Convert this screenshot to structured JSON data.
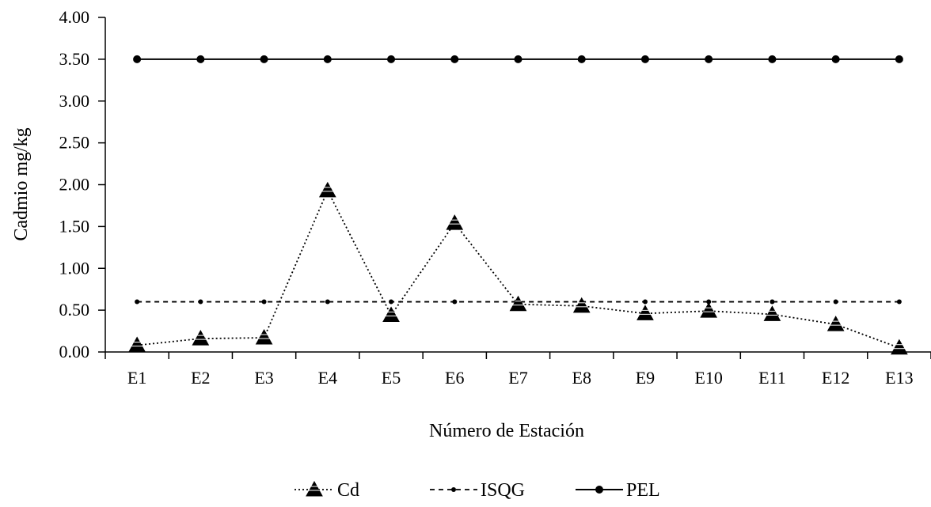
{
  "chart_data": {
    "type": "line",
    "title": "",
    "xlabel": "Número de Estación",
    "ylabel": "Cadmio mg/kg",
    "categories": [
      "E1",
      "E2",
      "E3",
      "E4",
      "E5",
      "E6",
      "E7",
      "E8",
      "E9",
      "E10",
      "E11",
      "E12",
      "E13"
    ],
    "ylim": [
      0,
      4
    ],
    "yticks": [
      "0.00",
      "0.50",
      "1.00",
      "1.50",
      "2.00",
      "2.50",
      "3.00",
      "3.50",
      "4.00"
    ],
    "grid": false,
    "legend_position": "bottom",
    "series": [
      {
        "name": "Cd",
        "style": "dotted",
        "marker": "triangle",
        "color": "#000000",
        "values": [
          0.08,
          0.16,
          0.17,
          1.93,
          0.44,
          1.54,
          0.57,
          0.55,
          0.46,
          0.49,
          0.45,
          0.33,
          0.05
        ]
      },
      {
        "name": "ISQG",
        "style": "dashed",
        "marker": "small-dot",
        "color": "#000000",
        "values": [
          0.6,
          0.6,
          0.6,
          0.6,
          0.6,
          0.6,
          0.6,
          0.6,
          0.6,
          0.6,
          0.6,
          0.6,
          0.6
        ]
      },
      {
        "name": "PEL",
        "style": "solid",
        "marker": "dot",
        "color": "#000000",
        "values": [
          3.5,
          3.5,
          3.5,
          3.5,
          3.5,
          3.5,
          3.5,
          3.5,
          3.5,
          3.5,
          3.5,
          3.5,
          3.5
        ]
      }
    ]
  }
}
